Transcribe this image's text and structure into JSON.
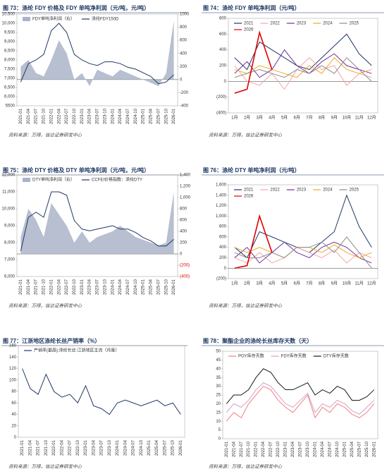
{
  "chart_data": [
    {
      "type": "line",
      "title": "图 73：涤纶 FDY 价格及 FDY 单吨净利润（元/吨，元/吨）",
      "source": "资料来源：万得，信达证券研发中心",
      "categories": [
        "2021-01",
        "2021-04",
        "2021-07",
        "2021-10",
        "2022-01",
        "2022-04",
        "2022-07",
        "2022-10",
        "2023-01",
        "2023-04",
        "2023-07",
        "2023-10",
        "2024-01",
        "2024-04",
        "2024-07",
        "2024-10",
        "2025-01",
        "2025-04",
        "2025-07",
        "2025-10",
        "2026-01"
      ],
      "series": [
        {
          "name": "FDY单吨净利润（右）",
          "color": "#aab4c8",
          "type": "area",
          "axis": "y2",
          "values": [
            200,
            300,
            100,
            50,
            300,
            600,
            400,
            0,
            100,
            -100,
            150,
            100,
            50,
            150,
            100,
            50,
            0,
            -50,
            -100,
            100,
            900
          ]
        },
        {
          "name": "涤纶FDY150D",
          "color": "#1f3864",
          "values": [
            6800,
            7800,
            8000,
            8300,
            9600,
            10000,
            9500,
            8300,
            8000,
            7800,
            7700,
            7900,
            7900,
            7800,
            7600,
            7500,
            7300,
            7100,
            6700,
            6800,
            7200
          ]
        }
      ],
      "ylim": [
        5500,
        10500
      ],
      "yticks": [
        5500,
        {
          "value": 6000,
          "label": "6,000"
        },
        {
          "value": 6500,
          "label": "6,500"
        },
        {
          "value": 7000,
          "label": "7,000"
        },
        {
          "value": 7500,
          "label": "7,500"
        },
        {
          "value": 8000,
          "label": "8,000"
        },
        {
          "value": 8500,
          "label": "8,500"
        },
        {
          "value": 9000,
          "label": "9,000"
        },
        {
          "value": 9500,
          "label": "9,500"
        },
        {
          "value": 10000,
          "label": "10,000"
        },
        {
          "value": 10500,
          "label": "10,500"
        }
      ],
      "y2lim": [
        -400,
        1000
      ],
      "y2ticks": [
        -400,
        -200,
        0,
        200,
        400,
        600,
        800,
        1000
      ]
    },
    {
      "type": "line",
      "title": "图 74：涤纶 FDY 单吨净利润（元/吨）",
      "source": "资料来源：万得，信达证券研发中心",
      "categories": [
        "1月",
        "2月",
        "3月",
        "4月",
        "5月",
        "6月",
        "7月",
        "8月",
        "9月",
        "10月",
        "11月",
        "12月"
      ],
      "series": [
        {
          "name": "2021",
          "color": "#1f3864",
          "values": [
            300,
            150,
            500,
            400,
            300,
            200,
            150,
            300,
            450,
            600,
            350,
            200
          ]
        },
        {
          "name": "2022",
          "color": "#f4a6a6",
          "values": [
            200,
            0,
            -50,
            100,
            -100,
            150,
            300,
            150,
            200,
            -50,
            100,
            50
          ]
        },
        {
          "name": "2023",
          "color": "#7030a0",
          "values": [
            100,
            250,
            50,
            150,
            400,
            200,
            100,
            250,
            350,
            200,
            150,
            100
          ]
        },
        {
          "name": "2024",
          "color": "#f5a623",
          "values": [
            150,
            100,
            200,
            150,
            100,
            50,
            200,
            100,
            300,
            150,
            100,
            150
          ]
        },
        {
          "name": "2025",
          "color": "#8c8c8c",
          "values": [
            50,
            100,
            150,
            100,
            50,
            150,
            100,
            200,
            100,
            300,
            150,
            0
          ]
        },
        {
          "name": "2026",
          "color": "#e00000",
          "values": [
            -150,
            -100,
            620,
            150,
            null,
            null,
            null,
            null,
            null,
            null,
            null,
            null
          ]
        }
      ],
      "ylim": [
        -400,
        800
      ],
      "yticks": [
        {
          "value": -400,
          "label": "(400)"
        },
        {
          "value": -200,
          "label": "(200)"
        },
        0,
        200,
        400,
        600,
        800
      ]
    },
    {
      "type": "line",
      "title": "图 75：涤纶 DTY 价格及 DTY 单吨净利润（元/吨，元/吨）",
      "source": "资料来源：万得，信达证券研发中心",
      "categories": [
        "2021-01",
        "2021-04",
        "2021-07",
        "2021-10",
        "2022-01",
        "2022-04",
        "2022-07",
        "2022-10",
        "2023-01",
        "2023-04",
        "2023-07",
        "2023-10",
        "2024-01",
        "2024-04",
        "2024-07",
        "2024-10",
        "2025-01",
        "2025-04",
        "2025-07",
        "2025-10",
        "2026-01"
      ],
      "series": [
        {
          "name": "DTY单吨净利润（右）",
          "color": "#aab4c8",
          "type": "area",
          "axis": "y2",
          "values": [
            300,
            800,
            600,
            300,
            900,
            700,
            500,
            200,
            400,
            200,
            300,
            350,
            400,
            500,
            400,
            300,
            250,
            200,
            150,
            200,
            1100
          ]
        },
        {
          "name": "CCFEI价格指数：涤纶DTY",
          "color": "#1f3864",
          "values": [
            7500,
            9500,
            9800,
            9500,
            11000,
            11000,
            10800,
            9300,
            8800,
            8700,
            8800,
            8900,
            9000,
            8800,
            8800,
            8600,
            8300,
            8100,
            7800,
            7800,
            8200
          ]
        }
      ],
      "ylim": [
        6000,
        12000
      ],
      "yticks": [
        {
          "value": 6000,
          "label": "6,000"
        },
        {
          "value": 7000,
          "label": "7,000"
        },
        {
          "value": 8000,
          "label": "8,000"
        },
        {
          "value": 9000,
          "label": "9,000"
        },
        {
          "value": 10000,
          "label": "10,000"
        },
        {
          "value": 11000,
          "label": "11,000"
        },
        {
          "value": 12000,
          "label": "12,000"
        }
      ],
      "y2lim": [
        -400,
        1400
      ],
      "y2ticks": [
        {
          "value": -400,
          "label": "(400)"
        },
        {
          "value": -200,
          "label": "(200)"
        },
        0,
        200,
        400,
        600,
        800,
        {
          "value": 1000,
          "label": "1,000"
        },
        {
          "value": 1200,
          "label": "1,200"
        },
        {
          "value": 1400,
          "label": "1,400"
        }
      ],
      "negative_tick_color": "#e00000"
    },
    {
      "type": "line",
      "title": "图 76：涤纶 DTY 单吨净利润（元/吨）",
      "source": "资料来源：万得，信达证券研发中心",
      "categories": [
        "1月",
        "2月",
        "3月",
        "4月",
        "5月",
        "6月",
        "7月",
        "8月",
        "9月",
        "10月",
        "11月",
        "12月"
      ],
      "series": [
        {
          "name": "2021",
          "color": "#1f3864",
          "values": [
            400,
            200,
            700,
            600,
            500,
            400,
            300,
            500,
            700,
            1400,
            800,
            400
          ]
        },
        {
          "name": "2022",
          "color": "#f4a6a6",
          "values": [
            200,
            100,
            300,
            100,
            200,
            400,
            300,
            200,
            350,
            100,
            300,
            200
          ]
        },
        {
          "name": "2023",
          "color": "#7030a0",
          "values": [
            200,
            400,
            100,
            300,
            500,
            300,
            200,
            400,
            500,
            400,
            200,
            100
          ]
        },
        {
          "name": "2024",
          "color": "#f5a623",
          "values": [
            400,
            300,
            400,
            300,
            200,
            400,
            400,
            300,
            450,
            300,
            200,
            300
          ]
        },
        {
          "name": "2025",
          "color": "#8c8c8c",
          "values": [
            300,
            200,
            200,
            300,
            200,
            400,
            400,
            500,
            300,
            600,
            300,
            0
          ]
        },
        {
          "name": "2026",
          "color": "#e00000",
          "values": [
            0,
            50,
            1000,
            300,
            null,
            null,
            null,
            null,
            null,
            null,
            null,
            null
          ]
        }
      ],
      "ylim": [
        -200,
        1600
      ],
      "yticks": [
        {
          "value": -200,
          "label": "(200)"
        },
        0,
        200,
        400,
        600,
        800,
        {
          "value": 1000,
          "label": "1,000"
        },
        {
          "value": 1200,
          "label": "1,200"
        },
        {
          "value": 1400,
          "label": "1,400"
        },
        {
          "value": 1600,
          "label": "1,600"
        }
      ]
    },
    {
      "type": "line",
      "title": "图 77：江浙地区涤纶长丝产销率（%）",
      "source": "资料来源：万得，信达证券研发中心",
      "categories": [
        "2021-01",
        "2021-04",
        "2021-07",
        "2021-10",
        "2022-01",
        "2022-04",
        "2022-07",
        "2022-10",
        "2023-01",
        "2023-04",
        "2023-07",
        "2023-10",
        "2024-01",
        "2024-04",
        "2024-07",
        "2024-10",
        "2025-01",
        "2025-04",
        "2025-07",
        "2025-10",
        "2026-01"
      ],
      "series": [
        {
          "name": "产销率(最高):涤纶长丝:江浙地区主流（月度）",
          "color": "#1f3864",
          "values": [
            120,
            85,
            75,
            110,
            80,
            70,
            75,
            60,
            90,
            55,
            50,
            40,
            60,
            65,
            60,
            55,
            60,
            65,
            55,
            60,
            40
          ]
        }
      ],
      "ylim": [
        0,
        160
      ],
      "yticks": [
        0,
        20,
        40,
        60,
        80,
        100,
        120,
        140,
        160
      ]
    },
    {
      "type": "line",
      "title": "图 78：聚酯企业的涤纶长丝库存天数（天）",
      "source": "资料来源：万得，信达证券研发中心",
      "categories": [
        "2021-01",
        "2021-04",
        "2021-07",
        "2021-10",
        "2022-01",
        "2022-04",
        "2022-07",
        "2022-10",
        "2023-01",
        "2023-04",
        "2023-07",
        "2023-10",
        "2024-01",
        "2024-04",
        "2024-07",
        "2024-10",
        "2025-01",
        "2025-04",
        "2025-07",
        "2025-10",
        "2026-01"
      ],
      "series": [
        {
          "name": "POY库存天数",
          "color": "#f08080",
          "values": [
            10,
            15,
            12,
            20,
            25,
            30,
            28,
            22,
            18,
            15,
            20,
            25,
            12,
            18,
            15,
            20,
            18,
            14,
            12,
            15,
            20
          ]
        },
        {
          "name": "FDY库存天数",
          "color": "#d4a0c8",
          "values": [
            15,
            20,
            18,
            22,
            28,
            32,
            30,
            25,
            20,
            18,
            22,
            26,
            15,
            20,
            18,
            22,
            20,
            16,
            14,
            18,
            22
          ]
        },
        {
          "name": "DTY库存天数",
          "color": "#1a1a1a",
          "values": [
            20,
            25,
            25,
            28,
            35,
            40,
            38,
            32,
            28,
            28,
            30,
            32,
            25,
            28,
            26,
            30,
            28,
            22,
            22,
            24,
            28
          ]
        }
      ],
      "ylim": [
        0,
        50
      ],
      "yticks": [
        0,
        5,
        10,
        15,
        20,
        25,
        30,
        35,
        40,
        45,
        50
      ]
    }
  ]
}
